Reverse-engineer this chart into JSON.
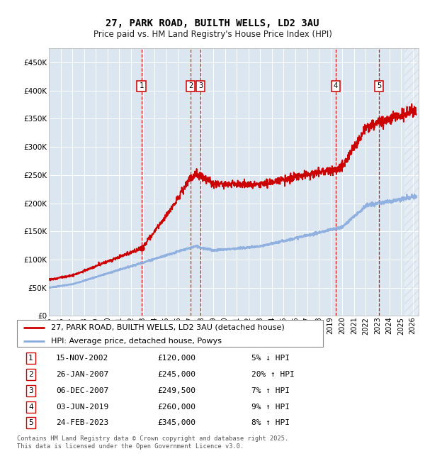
{
  "title": "27, PARK ROAD, BUILTH WELLS, LD2 3AU",
  "subtitle": "Price paid vs. HM Land Registry's House Price Index (HPI)",
  "ylim": [
    0,
    475000
  ],
  "yticks": [
    0,
    50000,
    100000,
    150000,
    200000,
    250000,
    300000,
    350000,
    400000,
    450000
  ],
  "xlim_start": 1995.0,
  "xlim_end": 2026.5,
  "sale_dates_all": [
    2002.876,
    2007.074,
    2007.924,
    2019.419,
    2023.146
  ],
  "sale_prices_all": [
    120000,
    245000,
    249500,
    260000,
    345000
  ],
  "sale_labels": [
    "1",
    "2",
    "3",
    "4",
    "5"
  ],
  "vline_dates": [
    2002.876,
    2007.074,
    2007.924,
    2019.419,
    2023.146
  ],
  "transactions": [
    {
      "label": "1",
      "date": "15-NOV-2002",
      "price": "£120,000",
      "hpi": "5% ↓ HPI"
    },
    {
      "label": "2",
      "date": "26-JAN-2007",
      "price": "£245,000",
      "hpi": "20% ↑ HPI"
    },
    {
      "label": "3",
      "date": "06-DEC-2007",
      "price": "£249,500",
      "hpi": "7% ↑ HPI"
    },
    {
      "label": "4",
      "date": "03-JUN-2019",
      "price": "£260,000",
      "hpi": "9% ↑ HPI"
    },
    {
      "label": "5",
      "date": "24-FEB-2023",
      "price": "£345,000",
      "hpi": "8% ↑ HPI"
    }
  ],
  "property_line_color": "#cc0000",
  "hpi_line_color": "#88aadd",
  "vline_color": "#cc0000",
  "plot_bg_color": "#dce6f1",
  "legend_label_property": "27, PARK ROAD, BUILTH WELLS, LD2 3AU (detached house)",
  "legend_label_hpi": "HPI: Average price, detached house, Powys",
  "footer": "Contains HM Land Registry data © Crown copyright and database right 2025.\nThis data is licensed under the Open Government Licence v3.0."
}
